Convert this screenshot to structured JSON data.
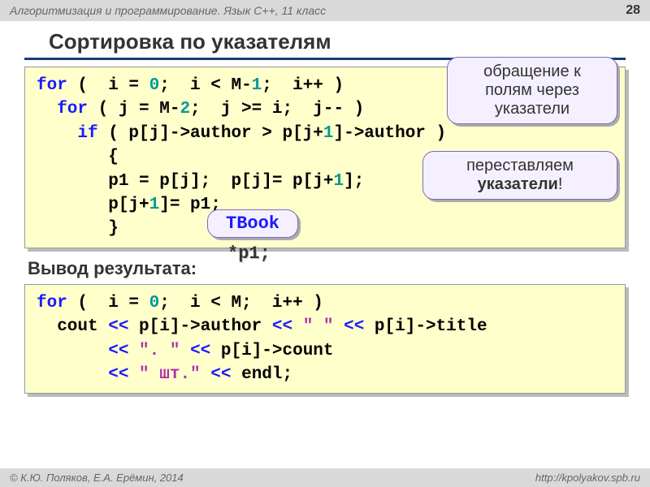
{
  "header": {
    "course": "Алгоритмизация и программирование. Язык C++, 11 класс",
    "page": "28"
  },
  "title": "Сортировка по указателям",
  "code1": {
    "l1a": "for",
    "l1b": " (  i = ",
    "l1c": "0",
    "l1d": ";  i < M-",
    "l1e": "1",
    "l1f": ";  i++ )",
    "l2a": "  for",
    "l2b": " ( j = M-",
    "l2c": "2",
    "l2d": ";  j >= i;  j-- )",
    "l3a": "    if",
    "l3b": " ( p[j]->author > p[j+",
    "l3c": "1",
    "l3d": "]->author )",
    "l4": "       {",
    "l5a": "       p1 = p[j];  p[j]= p[j+",
    "l5b": "1",
    "l5c": "];",
    "l6a": "       p[j+",
    "l6b": "1",
    "l6c": "]= p1;",
    "l7": "       }"
  },
  "callouts": {
    "c1": "обращение к полям через указатели",
    "c2a": "переставляем ",
    "c2b": "указатели",
    "c2c": "!",
    "c3": "TBook",
    "tail": "*p1;"
  },
  "subhead": "Вывод результата:",
  "code2": {
    "l1a": "for",
    "l1b": " (  i = ",
    "l1c": "0",
    "l1d": ";  i < M;  i++ )",
    "l2a": "  cout ",
    "l2b": "<<",
    "l2c": " p[i]->author ",
    "l2d": "<<",
    "l2e": " \" \" ",
    "l2f": "<<",
    "l2g": " p[i]->title",
    "l3a": "       ",
    "l3b": "<<",
    "l3c": " \". \" ",
    "l3d": "<<",
    "l3e": " p[i]->count",
    "l4a": "       ",
    "l4b": "<<",
    "l4c": " \" шт.\" ",
    "l4d": "<<",
    "l4e": " endl;"
  },
  "footer": {
    "left": "© К.Ю. Поляков, Е.А. Ерёмин, 2014",
    "right": "http://kpolyakov.spb.ru"
  },
  "colors": {
    "codebg": "#ffffcc",
    "keyword": "#1a1aff",
    "number": "#009999",
    "string": "#b030b0",
    "calloutbg": "#f5f0ff",
    "calloutborder": "#7a6bbd",
    "headerbg": "#d9d9d9",
    "underline": "#1a3a7a"
  }
}
